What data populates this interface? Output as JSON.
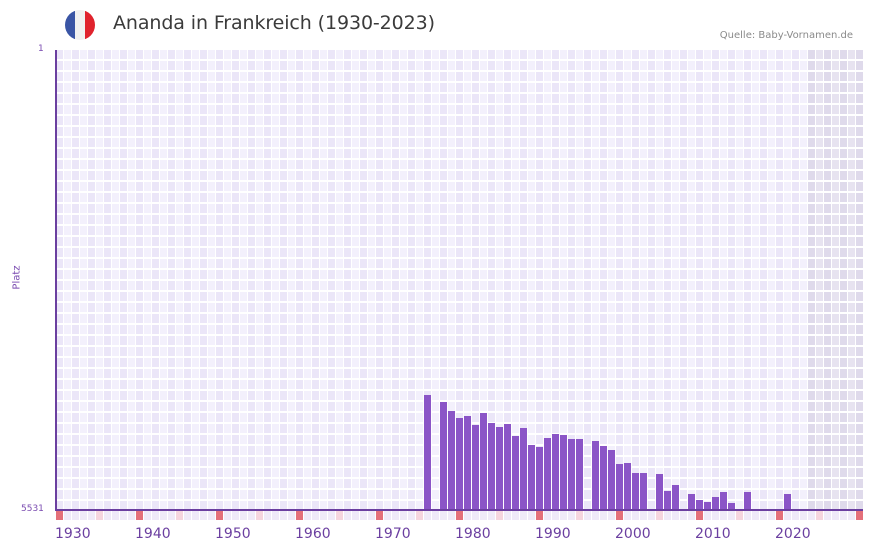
{
  "header": {
    "title": "Ananda in Frankreich (1930-2023)",
    "source": "Quelle: Baby-Vornamen.de",
    "flag": {
      "name": "france-flag-icon",
      "colors": [
        "#3a55a5",
        "#f1f1f1",
        "#e0232d"
      ]
    }
  },
  "colors": {
    "bar": "#8b55c7",
    "axis": "#6b3fa0",
    "grid_light": "#f3f0fc",
    "grid_dark": "#ebe6f8",
    "future_light": "#e7e3f0",
    "future_dark": "#dfdaeb",
    "decade_marker": "#e4707a",
    "half_decade_marker": "#f5d5de",
    "year_marker": "#efeaf8"
  },
  "chart_data": {
    "type": "bar",
    "title": "Ananda in Frankreich (1930-2023)",
    "xlabel": "",
    "ylabel": "Platz",
    "y_inverted": true,
    "ylim": [
      1,
      5531
    ],
    "xlim": [
      1930,
      2030
    ],
    "future_shaded_from": 2024,
    "grid": true,
    "y_tick_labels": [
      "1",
      "5531"
    ],
    "x_tick_labels": [
      "1930",
      "1940",
      "1950",
      "1960",
      "1970",
      "1980",
      "1990",
      "2000",
      "2010",
      "2020"
    ],
    "categories": [
      1976,
      1978,
      1979,
      1980,
      1981,
      1982,
      1983,
      1984,
      1985,
      1986,
      1987,
      1988,
      1989,
      1990,
      1991,
      1992,
      1993,
      1994,
      1995,
      1997,
      1998,
      1999,
      2000,
      2001,
      2002,
      2003,
      2005,
      2006,
      2007,
      2009,
      2010,
      2011,
      2012,
      2013,
      2014,
      2016,
      2021
    ],
    "values": [
      4148,
      4232,
      4341,
      4425,
      4401,
      4509,
      4365,
      4485,
      4533,
      4497,
      4641,
      4545,
      4750,
      4774,
      4665,
      4617,
      4629,
      4677,
      4677,
      4701,
      4761,
      4809,
      4978,
      4966,
      5086,
      5086,
      5098,
      5303,
      5231,
      5339,
      5411,
      5435,
      5375,
      5315,
      5447,
      5315,
      5339
    ]
  }
}
